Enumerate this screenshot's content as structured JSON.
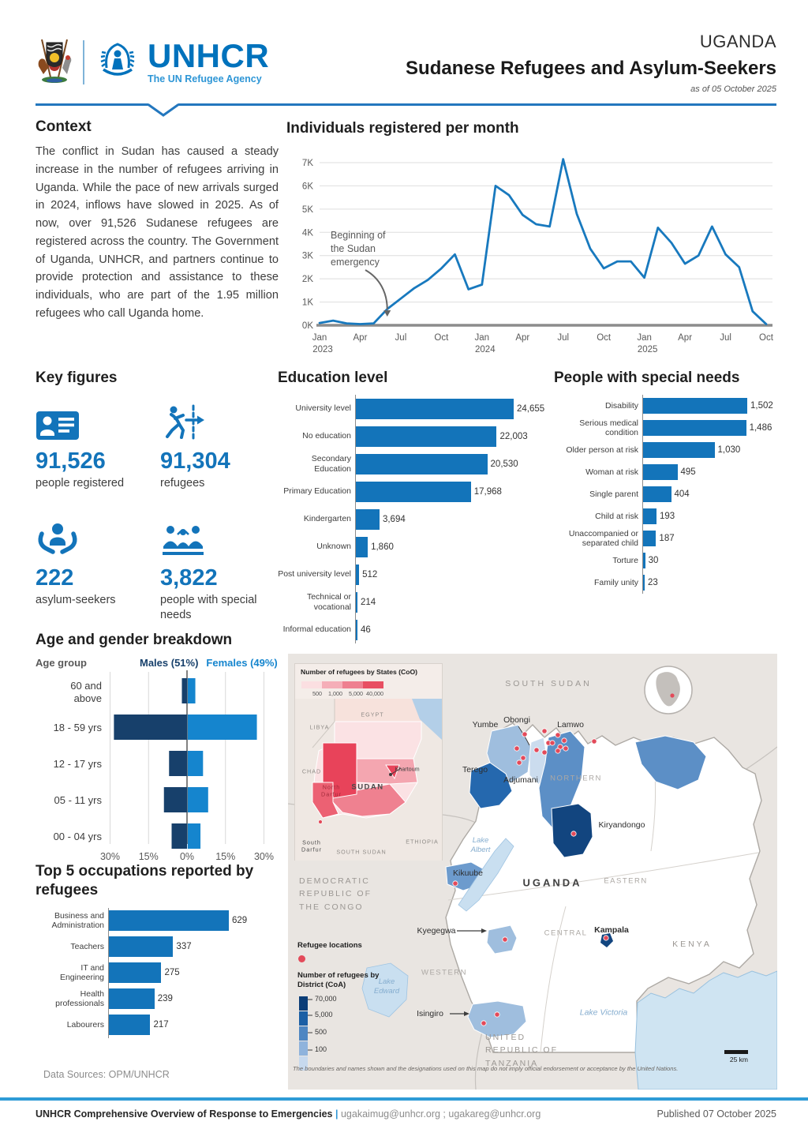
{
  "colors": {
    "accent": "#0072BC",
    "chart_blue": "#1374BA",
    "line_blue": "#1879BE",
    "male_navy": "#17406B",
    "female_blue": "#1585CE",
    "refugee_dot_red": "#E34A5A",
    "footer_rule_blue": "#2E9BD6"
  },
  "header": {
    "country": "UGANDA",
    "title": "Sudanese Refugees and Asylum-Seekers",
    "as_of": "as of 05 October 2025",
    "logo_name": "UNHCR",
    "logo_tagline": "The UN Refugee Agency"
  },
  "context": {
    "heading": "Context",
    "body": "The conflict in Sudan has caused a steady increase in the number of refugees arriving in Uganda. While the pace of new arrivals surged in 2024, inflows have slowed in 2025. As of now, over 91,526 Sudanese refugees are registered across the country. The Government of Uganda, UNHCR, and partners continue to provide protection and assistance to these individuals, who are part of the 1.95 million refugees who call Uganda home."
  },
  "key_figures": {
    "heading": "Key figures",
    "items": [
      {
        "value": "91,526",
        "label": "people registered",
        "icon": "id-card-icon"
      },
      {
        "value": "91,304",
        "label": "refugees",
        "icon": "running-person-icon"
      },
      {
        "value": "222",
        "label": "asylum-seekers",
        "icon": "hands-holding-person-icon"
      },
      {
        "value": "3,822",
        "label": "people with special needs",
        "icon": "people-group-icon"
      }
    ]
  },
  "chart_data": [
    {
      "id": "monthly",
      "type": "line",
      "title": "Individuals registered per month",
      "start": "Jan 2023",
      "end": "Oct 2025",
      "values": [
        100,
        200,
        80,
        50,
        80,
        700,
        1150,
        1600,
        1950,
        2450,
        3050,
        1550,
        1750,
        6000,
        5600,
        4750,
        4350,
        4250,
        7150,
        4800,
        3300,
        2450,
        2750,
        2750,
        2050,
        4200,
        3550,
        2650,
        3000,
        4250,
        3050,
        2500,
        600,
        50
      ],
      "ylim": [
        0,
        7000
      ],
      "y_ticks": [
        "0K",
        "1K",
        "2K",
        "3K",
        "4K",
        "5K",
        "6K",
        "7K"
      ],
      "x_tick_labels": [
        "Jan",
        "Apr",
        "Jul",
        "Oct",
        "Jan",
        "Apr",
        "Jul",
        "Oct",
        "Jan",
        "Apr",
        "Jul",
        "Oct"
      ],
      "year_labels": [
        {
          "label": "2023",
          "index": 0
        },
        {
          "label": "2024",
          "index": 12
        },
        {
          "label": "2025",
          "index": 24
        }
      ],
      "annotation": "Beginning of\nthe Sudan\nemergency",
      "annotation_arrow_month_index": 5,
      "line_color": "#1879BE",
      "grid": true
    },
    {
      "id": "education",
      "type": "bar",
      "title": "Education level",
      "categories": [
        "University level",
        "No education",
        "Secondary Education",
        "Primary Education",
        "Kindergarten",
        "Unknown",
        "Post university level",
        "Technical or vocational",
        "Informal education"
      ],
      "values": [
        24655,
        22003,
        20530,
        17968,
        3694,
        1860,
        512,
        214,
        46
      ],
      "value_labels": [
        "24,655",
        "22,003",
        "20,530",
        "17,968",
        "3,694",
        "1,860",
        "512",
        "214",
        "46"
      ],
      "bar_color": "#1374BA"
    },
    {
      "id": "special_needs",
      "type": "bar",
      "title": "People with special needs",
      "categories": [
        "Disability",
        "Serious medical condition",
        "Older person at risk",
        "Woman at risk",
        "Single parent",
        "Child at risk",
        "Unaccompanied or separated child",
        "Torture",
        "Family unity"
      ],
      "values": [
        1502,
        1486,
        1030,
        495,
        404,
        193,
        187,
        30,
        23
      ],
      "value_labels": [
        "1,502",
        "1,486",
        "1,030",
        "495",
        "404",
        "193",
        "187",
        "30",
        "23"
      ],
      "bar_color": "#1374BA"
    },
    {
      "id": "age_gender",
      "type": "pyramid",
      "title": "Age and gender breakdown",
      "col_header": "Age group",
      "categories": [
        "60 and\nabove",
        "18 - 59 yrs",
        "12 - 17 yrs",
        "05 - 11 yrs",
        "00 - 04 yrs"
      ],
      "series": [
        {
          "name": "Males (51%)",
          "color": "#17406B",
          "values": [
            2,
            28.5,
            7,
            9,
            6
          ]
        },
        {
          "name": "Females (49%)",
          "color": "#1585CE",
          "values": [
            3,
            27,
            6,
            8,
            5
          ]
        }
      ],
      "x_ticks": [
        "30%",
        "15%",
        "0%",
        "15%",
        "30%"
      ],
      "xlim": 30
    },
    {
      "id": "occupations",
      "type": "bar",
      "title": "Top 5 occupations reported by refugees",
      "categories": [
        "Business and Administration",
        "Teachers",
        "IT and Engineering",
        "Health professionals",
        "Labourers"
      ],
      "values": [
        629,
        337,
        275,
        239,
        217
      ],
      "value_labels": [
        "629",
        "337",
        "275",
        "239",
        "217"
      ],
      "bar_color": "#1374BA"
    }
  ],
  "data_sources": "Data Sources: OPM/UNHCR",
  "map": {
    "inset_sudan": {
      "legend_title": "Number of refugees by States (CoO)",
      "legend_ticks": [
        "500",
        "1,000",
        "5,000",
        "40,000"
      ],
      "labels": {
        "egypt": "EGYPT",
        "libya": "LIBYA",
        "chad": "CHAD",
        "sudan": "SUDAN",
        "khartoum": "Khartoum",
        "north_darfur": "North Darfur",
        "south_darfur": "South Darfur",
        "south_sudan": "SOUTH SUDAN",
        "ethiopia": "ETHIOPIA"
      }
    },
    "legend_locations_title": "Refugee locations",
    "legend_district_title": "Number of refugees by District (CoA)",
    "legend_district_ticks": [
      "70,000",
      "5,000",
      "500",
      "100"
    ],
    "countries": {
      "south_sudan": "SOUTH SUDAN",
      "drc": "DEMOCRATIC REPUBLIC OF THE CONGO",
      "tanzania": "UNITED REPUBLIC OF TANZANIA",
      "kenya": "KENYA",
      "uganda": "UGANDA"
    },
    "regions": {
      "northern": "NORTHERN",
      "eastern": "EASTERN",
      "central": "CENTRAL",
      "western": "WESTERN"
    },
    "districts": {
      "yumbe": "Yumbe",
      "obongi": "Obongi",
      "lamwo": "Lamwo",
      "terego": "Terego",
      "adjumani": "Adjumani",
      "kiryandongo": "Kiryandongo",
      "kikuube": "Kikuube",
      "kyegegwa": "Kyegegwa",
      "isingiro": "Isingiro"
    },
    "capital": "Kampala",
    "lakes": {
      "albert": "Lake Albert",
      "edward": "Lake Edward",
      "victoria": "Lake Victoria"
    },
    "scale": "25 km",
    "disclaimer": "The boundaries and names shown and the designations used on this map do not imply official endorsement or acceptance by the United Nations."
  },
  "footer": {
    "left_bold": "UNHCR Comprehensive Overview of Response to Emergencies",
    "separator": "|",
    "emails": "ugakaimug@unhcr.org ; ugakareg@unhcr.org",
    "published": "Published  07 October 2025"
  }
}
